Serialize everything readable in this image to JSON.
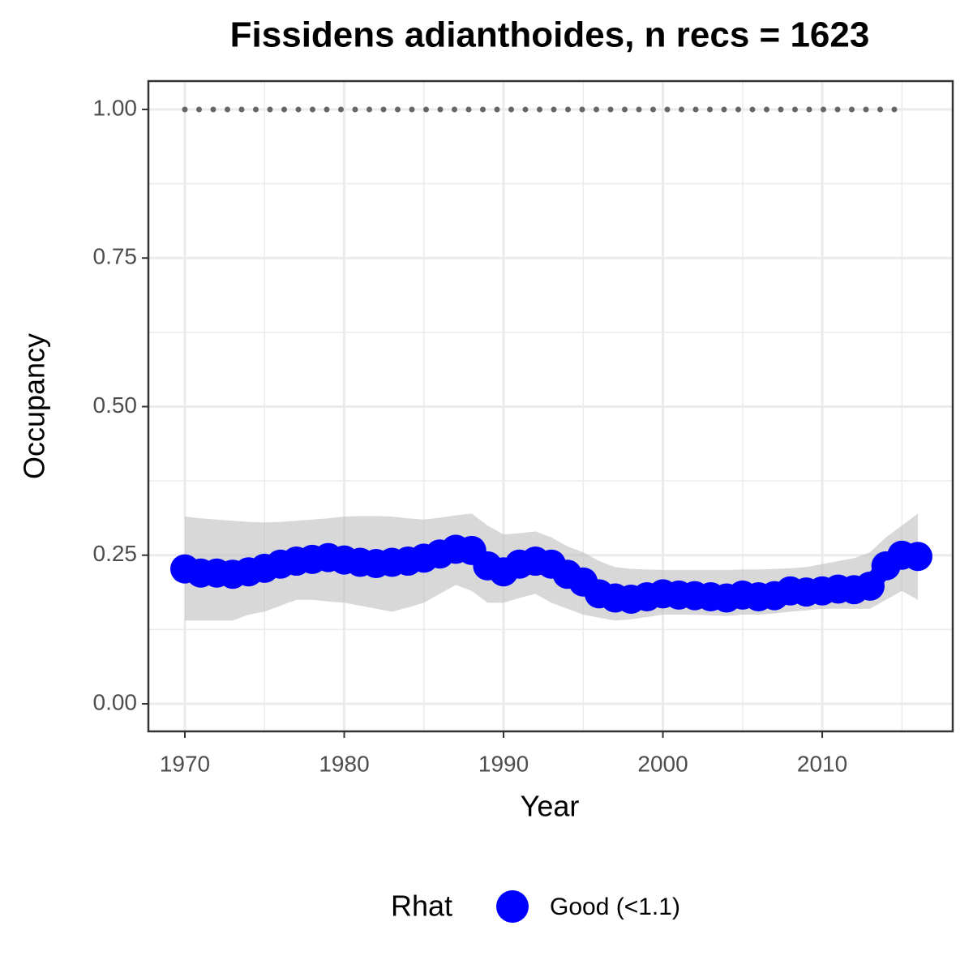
{
  "chart_data": {
    "type": "line",
    "title": "Fissidens adianthoides, n recs = 1623",
    "x_label": "Year",
    "y_label": "Occupancy",
    "legend_title": "Rhat",
    "x": [
      1970,
      1971,
      1972,
      1973,
      1974,
      1975,
      1976,
      1977,
      1978,
      1979,
      1980,
      1981,
      1982,
      1983,
      1984,
      1985,
      1986,
      1987,
      1988,
      1989,
      1990,
      1991,
      1992,
      1993,
      1994,
      1995,
      1996,
      1997,
      1998,
      1999,
      2000,
      2001,
      2002,
      2003,
      2004,
      2005,
      2006,
      2007,
      2008,
      2009,
      2010,
      2011,
      2012,
      2013,
      2014,
      2015,
      2016
    ],
    "series": [
      {
        "name": "Good (<1.1)",
        "color": "#0000ff",
        "values": [
          0.227,
          0.22,
          0.22,
          0.218,
          0.222,
          0.228,
          0.235,
          0.24,
          0.243,
          0.246,
          0.242,
          0.238,
          0.236,
          0.238,
          0.24,
          0.245,
          0.252,
          0.26,
          0.258,
          0.232,
          0.222,
          0.235,
          0.24,
          0.235,
          0.218,
          0.205,
          0.185,
          0.178,
          0.176,
          0.18,
          0.185,
          0.183,
          0.182,
          0.18,
          0.178,
          0.183,
          0.18,
          0.182,
          0.19,
          0.188,
          0.19,
          0.193,
          0.192,
          0.198,
          0.232,
          0.25,
          0.248
        ],
        "ci_upper": [
          0.315,
          0.312,
          0.31,
          0.308,
          0.306,
          0.305,
          0.306,
          0.308,
          0.31,
          0.312,
          0.315,
          0.316,
          0.316,
          0.315,
          0.312,
          0.31,
          0.313,
          0.317,
          0.32,
          0.3,
          0.285,
          0.287,
          0.29,
          0.28,
          0.265,
          0.255,
          0.24,
          0.23,
          0.227,
          0.226,
          0.225,
          0.225,
          0.225,
          0.225,
          0.225,
          0.226,
          0.226,
          0.227,
          0.228,
          0.23,
          0.235,
          0.24,
          0.245,
          0.255,
          0.28,
          0.3,
          0.32
        ],
        "ci_lower": [
          0.14,
          0.14,
          0.14,
          0.14,
          0.15,
          0.155,
          0.165,
          0.175,
          0.175,
          0.172,
          0.17,
          0.165,
          0.16,
          0.155,
          0.162,
          0.17,
          0.185,
          0.2,
          0.19,
          0.17,
          0.17,
          0.178,
          0.185,
          0.17,
          0.16,
          0.15,
          0.145,
          0.14,
          0.142,
          0.146,
          0.15,
          0.15,
          0.15,
          0.149,
          0.148,
          0.15,
          0.15,
          0.152,
          0.155,
          0.157,
          0.16,
          0.16,
          0.16,
          0.16,
          0.175,
          0.19,
          0.175
        ],
        "ci_color": "#bebebe"
      }
    ],
    "reference": {
      "x": [
        1970,
        2015
      ],
      "value": 1,
      "color": "#666666"
    },
    "xlim": [
      1967.71,
      2018.19
    ],
    "ylim": [
      -0.0464,
      1.0477
    ],
    "xticks": [
      1970,
      1980,
      1990,
      2000,
      2010
    ],
    "yticks": [
      {
        "value": 0,
        "label": "0.00"
      },
      {
        "value": 0.25,
        "label": "0.25"
      },
      {
        "value": 0.5,
        "label": "0.50"
      },
      {
        "value": 0.75,
        "label": "0.75"
      },
      {
        "value": 1,
        "label": "1.00"
      }
    ],
    "minor_xticks": [
      1975,
      1985,
      1995,
      2005,
      2015
    ],
    "minor_yticks": [
      0.125,
      0.375,
      0.625,
      0.875
    ],
    "grid": true,
    "legend_position": "bottom"
  }
}
